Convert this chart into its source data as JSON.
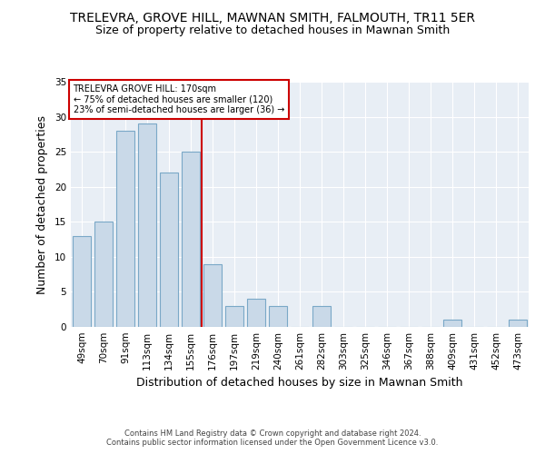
{
  "title": "TRELEVRA, GROVE HILL, MAWNAN SMITH, FALMOUTH, TR11 5ER",
  "subtitle": "Size of property relative to detached houses in Mawnan Smith",
  "xlabel": "Distribution of detached houses by size in Mawnan Smith",
  "ylabel": "Number of detached properties",
  "categories": [
    "49sqm",
    "70sqm",
    "91sqm",
    "113sqm",
    "134sqm",
    "155sqm",
    "176sqm",
    "197sqm",
    "219sqm",
    "240sqm",
    "261sqm",
    "282sqm",
    "303sqm",
    "325sqm",
    "346sqm",
    "367sqm",
    "388sqm",
    "409sqm",
    "431sqm",
    "452sqm",
    "473sqm"
  ],
  "values": [
    13,
    15,
    28,
    29,
    22,
    25,
    9,
    3,
    4,
    3,
    0,
    3,
    0,
    0,
    0,
    0,
    0,
    1,
    0,
    0,
    1
  ],
  "bar_color": "#c9d9e8",
  "bar_edgecolor": "#7aa8c7",
  "marker_line_color": "#cc0000",
  "annotation_line1": "TRELEVRA GROVE HILL: 170sqm",
  "annotation_line2": "← 75% of detached houses are smaller (120)",
  "annotation_line3": "23% of semi-detached houses are larger (36) →",
  "annotation_box_color": "#cc0000",
  "background_color": "#e8eef5",
  "ylim": [
    0,
    35
  ],
  "yticks": [
    0,
    5,
    10,
    15,
    20,
    25,
    30,
    35
  ],
  "footer": "Contains HM Land Registry data © Crown copyright and database right 2024.\nContains public sector information licensed under the Open Government Licence v3.0.",
  "title_fontsize": 10,
  "subtitle_fontsize": 9,
  "axis_label_fontsize": 9,
  "tick_fontsize": 7.5,
  "ylabel_fontsize": 9
}
